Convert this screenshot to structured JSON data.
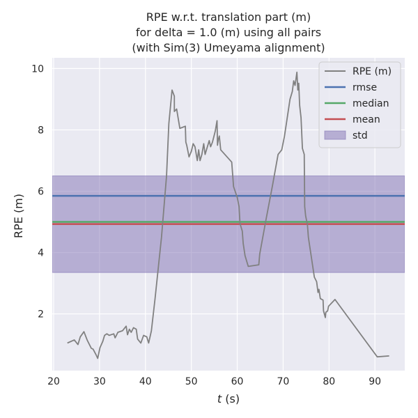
{
  "chart_data": {
    "type": "line",
    "title_lines": [
      "RPE w.r.t. translation part (m)",
      "for delta = 1.0 (m) using all pairs",
      "(with Sim(3) Umeyama alignment)"
    ],
    "xlabel_italic": "t",
    "xlabel_rest": " (s)",
    "ylabel": "RPE (m)",
    "xlim": [
      19.7,
      96.5
    ],
    "ylim": [
      0.15,
      10.35
    ],
    "xticks": [
      20,
      30,
      40,
      50,
      60,
      70,
      80,
      90
    ],
    "yticks": [
      2,
      4,
      6,
      8,
      10
    ],
    "grid": true,
    "legend_position": "top-right",
    "colors": {
      "background": "#eaeaf2",
      "grid": "#ffffff",
      "rpe": "#808080",
      "rmse": "#4c72b0",
      "median": "#55a868",
      "mean": "#c44e52",
      "std_fill": "#8172b3"
    },
    "legend": [
      {
        "key": "rpe",
        "label": "RPE (m)",
        "kind": "line"
      },
      {
        "key": "rmse",
        "label": "rmse",
        "kind": "line"
      },
      {
        "key": "median",
        "label": "median",
        "kind": "line"
      },
      {
        "key": "mean",
        "label": "mean",
        "kind": "line"
      },
      {
        "key": "std_fill",
        "label": "std",
        "kind": "patch"
      }
    ],
    "stats": {
      "rmse": 5.85,
      "median": 5.0,
      "mean": 4.93,
      "std_low": 3.35,
      "std_high": 6.5
    },
    "series": [
      {
        "key": "rpe",
        "label": "RPE (m)",
        "points": [
          [
            23,
            1.05
          ],
          [
            24.5,
            1.15
          ],
          [
            25.3,
            1.0
          ],
          [
            25.8,
            1.25
          ],
          [
            26.6,
            1.42
          ],
          [
            27.3,
            1.15
          ],
          [
            28.2,
            0.88
          ],
          [
            28.6,
            0.85
          ],
          [
            29.3,
            0.65
          ],
          [
            29.6,
            0.55
          ],
          [
            30.1,
            0.9
          ],
          [
            30.7,
            1.1
          ],
          [
            31.1,
            1.3
          ],
          [
            31.6,
            1.35
          ],
          [
            32.1,
            1.3
          ],
          [
            33.1,
            1.35
          ],
          [
            33.4,
            1.22
          ],
          [
            34.0,
            1.4
          ],
          [
            35.0,
            1.45
          ],
          [
            35.8,
            1.6
          ],
          [
            36.1,
            1.32
          ],
          [
            36.5,
            1.5
          ],
          [
            36.9,
            1.4
          ],
          [
            37.4,
            1.55
          ],
          [
            38.0,
            1.5
          ],
          [
            38.3,
            1.18
          ],
          [
            39.0,
            1.05
          ],
          [
            39.6,
            1.3
          ],
          [
            40.3,
            1.25
          ],
          [
            40.7,
            1.05
          ],
          [
            41.3,
            1.45
          ],
          [
            42.1,
            2.5
          ],
          [
            43.5,
            4.5
          ],
          [
            44.6,
            6.5
          ],
          [
            45.1,
            8.2
          ],
          [
            45.8,
            9.3
          ],
          [
            46.3,
            9.1
          ],
          [
            46.3,
            8.6
          ],
          [
            46.8,
            8.68
          ],
          [
            47.5,
            8.05
          ],
          [
            48.7,
            8.12
          ],
          [
            48.8,
            7.6
          ],
          [
            49.0,
            7.5
          ],
          [
            49.5,
            7.12
          ],
          [
            50.0,
            7.3
          ],
          [
            50.4,
            7.55
          ],
          [
            50.8,
            7.45
          ],
          [
            51.3,
            7.0
          ],
          [
            51.6,
            7.35
          ],
          [
            51.9,
            7.0
          ],
          [
            52.3,
            7.2
          ],
          [
            52.7,
            7.55
          ],
          [
            53.0,
            7.2
          ],
          [
            53.4,
            7.4
          ],
          [
            53.9,
            7.65
          ],
          [
            54.2,
            7.45
          ],
          [
            54.6,
            7.6
          ],
          [
            55.2,
            7.95
          ],
          [
            55.6,
            8.3
          ],
          [
            55.7,
            7.5
          ],
          [
            55.9,
            7.7
          ],
          [
            56.1,
            7.8
          ],
          [
            56.4,
            7.35
          ],
          [
            58.8,
            6.95
          ],
          [
            59.2,
            6.15
          ],
          [
            60.0,
            5.8
          ],
          [
            60.4,
            5.5
          ],
          [
            60.6,
            4.95
          ],
          [
            61.1,
            4.7
          ],
          [
            61.3,
            4.3
          ],
          [
            61.7,
            3.9
          ],
          [
            62.4,
            3.55
          ],
          [
            64.7,
            3.6
          ],
          [
            64.9,
            3.95
          ],
          [
            66.3,
            5.1
          ],
          [
            67.7,
            6.2
          ],
          [
            68.9,
            7.2
          ],
          [
            69.7,
            7.35
          ],
          [
            70.3,
            7.8
          ],
          [
            70.6,
            8.1
          ],
          [
            71.0,
            8.5
          ],
          [
            71.5,
            9.0
          ],
          [
            72.0,
            9.25
          ],
          [
            72.3,
            9.6
          ],
          [
            72.6,
            9.45
          ],
          [
            73.0,
            9.88
          ],
          [
            73.2,
            9.3
          ],
          [
            73.4,
            9.52
          ],
          [
            73.6,
            8.8
          ],
          [
            73.9,
            8.4
          ],
          [
            74.2,
            7.4
          ],
          [
            74.6,
            7.2
          ],
          [
            74.7,
            5.5
          ],
          [
            74.9,
            5.2
          ],
          [
            75.3,
            4.9
          ],
          [
            75.5,
            4.5
          ],
          [
            76.8,
            3.2
          ],
          [
            77.3,
            3.05
          ],
          [
            77.6,
            2.7
          ],
          [
            77.8,
            2.8
          ],
          [
            78.1,
            2.5
          ],
          [
            78.7,
            2.45
          ],
          [
            78.8,
            2.1
          ],
          [
            79.2,
            1.88
          ],
          [
            79.3,
            2.05
          ],
          [
            79.7,
            2.1
          ],
          [
            79.9,
            2.25
          ],
          [
            81.3,
            2.47
          ],
          [
            90.5,
            0.6
          ],
          [
            93.1,
            0.63
          ]
        ]
      }
    ]
  }
}
